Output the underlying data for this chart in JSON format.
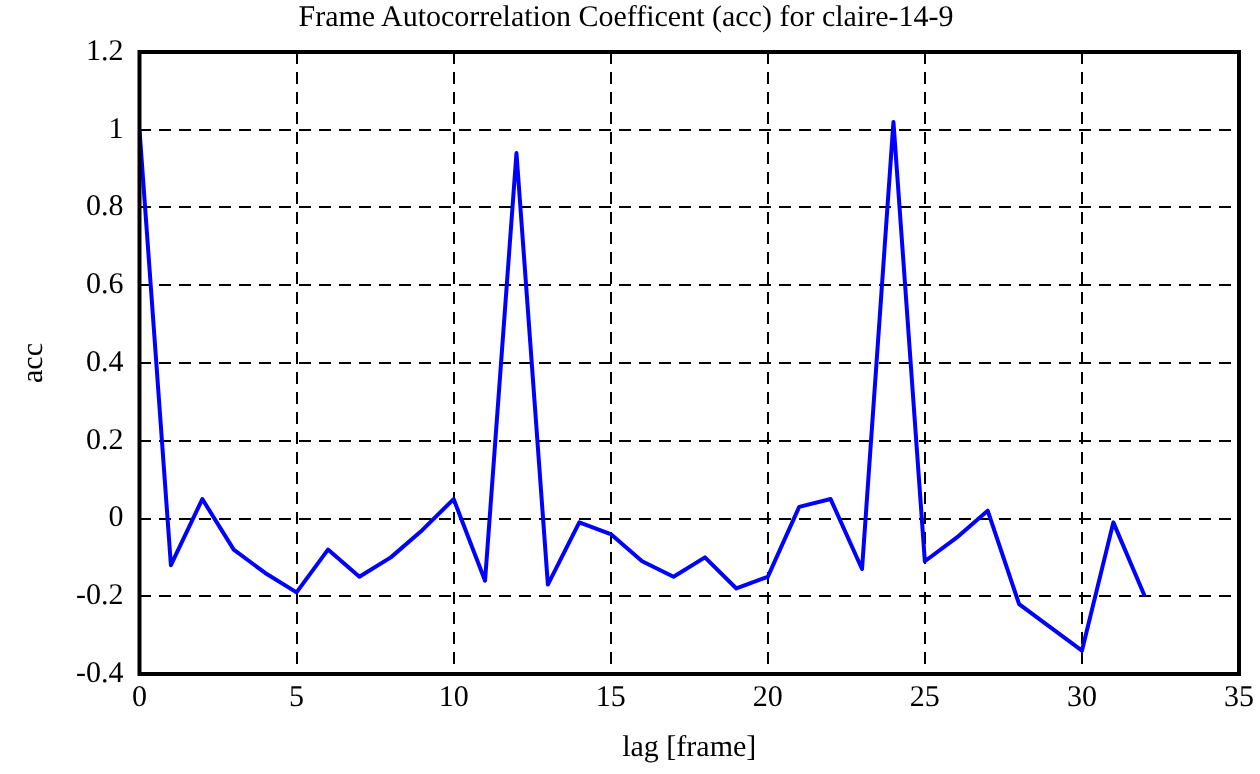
{
  "chart_data": {
    "type": "line",
    "title": "Frame Autocorrelation Coefficent (acc) for claire-14-9",
    "xlabel": "lag [frame]",
    "ylabel": "acc",
    "x": [
      0,
      1,
      2,
      3,
      4,
      5,
      6,
      7,
      8,
      9,
      10,
      11,
      12,
      13,
      14,
      15,
      16,
      17,
      18,
      19,
      20,
      21,
      22,
      23,
      24,
      25,
      26,
      27,
      28,
      29,
      30,
      31,
      32
    ],
    "series": [
      {
        "color": "#0000ff",
        "values": [
          1.0,
          -0.12,
          0.05,
          -0.08,
          -0.14,
          -0.19,
          -0.08,
          -0.15,
          -0.1,
          -0.03,
          0.05,
          -0.16,
          0.94,
          -0.17,
          -0.01,
          -0.04,
          -0.11,
          -0.15,
          -0.1,
          -0.18,
          -0.15,
          0.03,
          0.05,
          -0.13,
          1.02,
          -0.11,
          -0.05,
          0.02,
          -0.22,
          -0.28,
          -0.34,
          -0.01,
          -0.2
        ]
      }
    ],
    "xlim": [
      0,
      35
    ],
    "xticks": [
      0,
      5,
      10,
      15,
      20,
      25,
      30,
      35
    ],
    "ylim": [
      -0.4,
      1.2
    ],
    "yticks": [
      -0.4,
      -0.2,
      0,
      0.2,
      0.4,
      0.6,
      0.8,
      1,
      1.2
    ],
    "grid": true,
    "legend": false,
    "marker": "none",
    "line_style": "solid"
  }
}
